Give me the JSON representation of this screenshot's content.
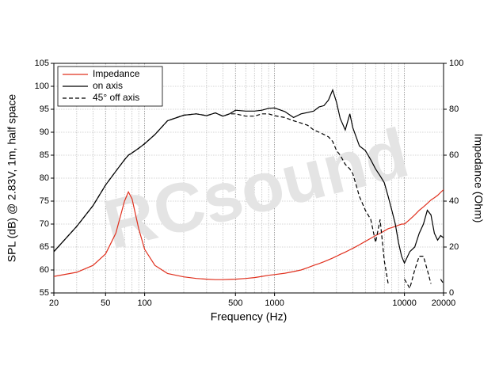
{
  "chart_data": {
    "type": "line",
    "xlabel": "Frequency (Hz)",
    "ylabel": "SPL (dB) @ 2.83V, 1m, half space",
    "y2label": "Impedance (Ohm)",
    "watermark": "RCsound",
    "xscale": "log",
    "grid": true,
    "legend": "upper left",
    "x": [
      20,
      30,
      40,
      50,
      60,
      70,
      75,
      80,
      90,
      100,
      120,
      150,
      200,
      250,
      300,
      350,
      400,
      450,
      500,
      600,
      700,
      800,
      900,
      1000,
      1200,
      1400,
      1600,
      1800,
      2000,
      2200,
      2400,
      2600,
      2800,
      3000,
      3200,
      3500,
      3800,
      4000,
      4500,
      5000,
      5500,
      6000,
      6500,
      7000,
      7500,
      8000,
      8500,
      9000,
      9500,
      10000,
      11000,
      12000,
      13000,
      14000,
      15000,
      16000,
      17000,
      18000,
      19000,
      20000
    ],
    "series": [
      {
        "name": "Impedance",
        "color": "#e0301e",
        "linestyle": "solid",
        "axis": "y2",
        "values": [
          7.2,
          9,
          12,
          17,
          26,
          40,
          44,
          41,
          28,
          19,
          12,
          8.5,
          7,
          6.3,
          6,
          5.8,
          5.8,
          5.9,
          6,
          6.3,
          6.7,
          7.2,
          7.7,
          8,
          8.6,
          9.3,
          10,
          11,
          12,
          12.8,
          13.6,
          14.4,
          15.2,
          16,
          16.8,
          17.8,
          18.8,
          19.4,
          21,
          22.5,
          23.8,
          25,
          26,
          27,
          28,
          28.5,
          29,
          29.5,
          30,
          30,
          32,
          34,
          36,
          37.5,
          39,
          40.5,
          41.5,
          42.5,
          43.8,
          45
        ]
      },
      {
        "name": "on axis",
        "color": "#000000",
        "linestyle": "solid",
        "values": [
          64,
          69.5,
          74,
          78.5,
          81.5,
          84,
          85,
          85.5,
          86.5,
          87.5,
          89.5,
          92.5,
          93.7,
          94,
          93.6,
          94.2,
          93.5,
          94,
          94.8,
          94.6,
          94.6,
          94.8,
          95.2,
          95.3,
          94.5,
          93.2,
          94,
          94.3,
          94.6,
          95.5,
          95.8,
          97,
          99.2,
          96.5,
          93,
          90.5,
          94,
          91,
          87,
          86,
          84,
          82,
          80.5,
          79,
          76,
          73,
          70,
          66,
          63,
          61.5,
          64,
          65,
          68,
          70,
          73,
          72,
          68,
          66.5,
          67.5,
          67
        ]
      },
      {
        "name": "45° off axis",
        "color": "#000000",
        "linestyle": "dashed",
        "values": [
          64,
          69.5,
          74,
          78.5,
          81.5,
          84,
          85,
          85.5,
          86.5,
          87.5,
          89.5,
          92.5,
          93.7,
          94,
          93.6,
          94.2,
          93.5,
          94,
          94,
          93.5,
          93.5,
          94,
          94,
          93.6,
          93.2,
          92.5,
          92,
          91.5,
          90.5,
          90,
          89.5,
          89,
          88,
          86,
          85,
          83,
          82,
          81,
          76,
          73,
          71,
          66,
          71,
          62,
          57,
          null,
          null,
          null,
          null,
          58,
          56,
          60,
          63,
          63,
          60,
          57,
          null,
          null,
          58,
          57
        ]
      }
    ],
    "xlim": [
      20,
      20000
    ],
    "xticks": [
      20,
      50,
      100,
      500,
      1000,
      10000,
      20000
    ],
    "ylim": [
      55,
      105
    ],
    "yticks": [
      55,
      60,
      65,
      70,
      75,
      80,
      85,
      90,
      95,
      100,
      105
    ],
    "y2lim": [
      0,
      100
    ],
    "y2ticks": [
      0,
      20,
      40,
      60,
      80,
      100
    ]
  }
}
